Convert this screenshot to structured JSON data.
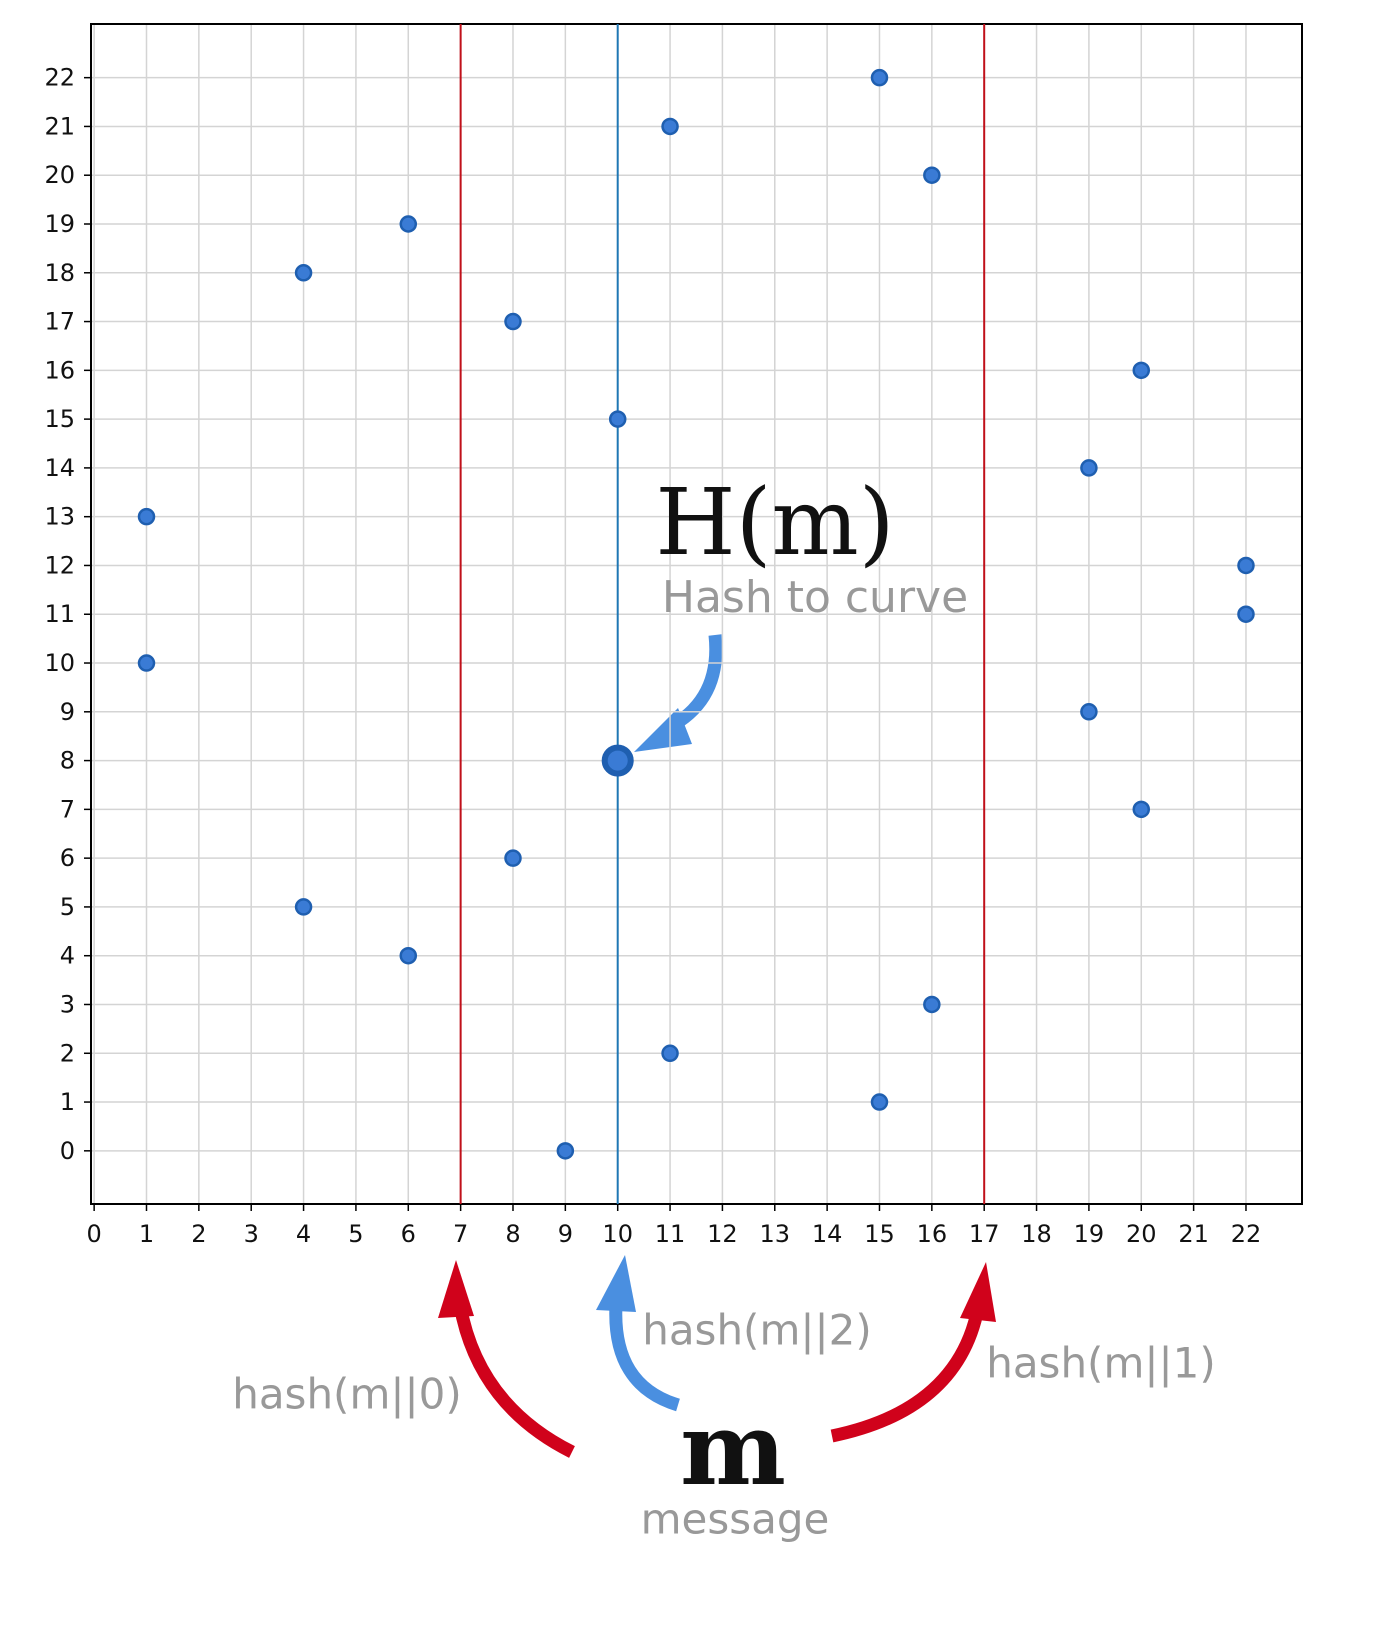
{
  "chart_data": {
    "type": "scatter",
    "x": [
      1,
      1,
      4,
      4,
      6,
      6,
      8,
      8,
      9,
      10,
      11,
      11,
      15,
      15,
      16,
      16,
      19,
      19,
      20,
      20,
      22,
      22
    ],
    "values": [
      13,
      10,
      18,
      5,
      19,
      4,
      17,
      6,
      0,
      15,
      21,
      2,
      22,
      1,
      20,
      3,
      14,
      9,
      16,
      7,
      12,
      11
    ],
    "color": "#3a7bd5",
    "highlight": {
      "x": 10,
      "y": 8
    },
    "vlines": [
      {
        "x": 7,
        "color": "#c0101a"
      },
      {
        "x": 10,
        "color": "#1f77b4"
      },
      {
        "x": 17,
        "color": "#c0101a"
      }
    ],
    "xlim": [
      -0.06,
      23.07
    ],
    "ylim": [
      -1.09,
      23.1
    ],
    "xticks": [
      0,
      1,
      2,
      3,
      4,
      5,
      6,
      7,
      8,
      9,
      10,
      11,
      12,
      13,
      14,
      15,
      16,
      17,
      18,
      19,
      20,
      21,
      22
    ],
    "yticks": [
      0,
      1,
      2,
      3,
      4,
      5,
      6,
      7,
      8,
      9,
      10,
      11,
      12,
      13,
      14,
      15,
      16,
      17,
      18,
      19,
      20,
      21,
      22
    ],
    "grid": true,
    "annotations": [
      "H(m)",
      "Hash to curve",
      "hash(m||0)",
      "hash(m||2)",
      "hash(m||1)",
      "m",
      "message"
    ]
  }
}
